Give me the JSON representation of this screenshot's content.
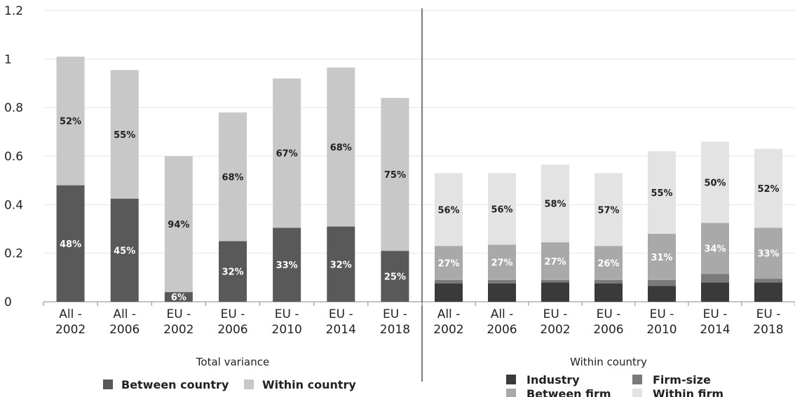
{
  "chart_data": {
    "type": "bar",
    "stacked": true,
    "ylim": [
      0,
      1.2
    ],
    "yticks": [
      "0",
      "0.2",
      "0.4",
      "0.6",
      "0.8",
      "1",
      "1.2"
    ],
    "grid": true,
    "colors": {
      "Between country": "#595959",
      "Within country": "#c8c8c8",
      "Industry": "#3a3a3a",
      "Firm-size": "#7a7a7a",
      "Between firm": "#a9a9a9",
      "Within firm": "#e3e3e3"
    },
    "panels": [
      {
        "label": "Total variance",
        "categories": [
          [
            "All -",
            "2002"
          ],
          [
            "All -",
            "2006"
          ],
          [
            "EU -",
            "2002"
          ],
          [
            "EU -",
            "2006"
          ],
          [
            "EU -",
            "2010"
          ],
          [
            "EU -",
            "2014"
          ],
          [
            "EU -",
            "2018"
          ]
        ],
        "series": [
          {
            "name": "Between country",
            "values": [
              0.48,
              0.425,
              0.04,
              0.25,
              0.305,
              0.31,
              0.21
            ],
            "labels": [
              "48%",
              "45%",
              "6%",
              "32%",
              "33%",
              "32%",
              "25%"
            ]
          },
          {
            "name": "Within country",
            "values": [
              0.53,
              0.53,
              0.56,
              0.53,
              0.615,
              0.655,
              0.63
            ],
            "labels": [
              "52%",
              "55%",
              "94%",
              "68%",
              "67%",
              "68%",
              "75%"
            ]
          }
        ],
        "legend": [
          "Between country",
          "Within country"
        ]
      },
      {
        "label": "Within country",
        "categories": [
          [
            "All -",
            "2002"
          ],
          [
            "All -",
            "2006"
          ],
          [
            "EU -",
            "2002"
          ],
          [
            "EU -",
            "2006"
          ],
          [
            "EU -",
            "2010"
          ],
          [
            "EU -",
            "2014"
          ],
          [
            "EU -",
            "2018"
          ]
        ],
        "series": [
          {
            "name": "Industry",
            "values": [
              0.075,
              0.075,
              0.08,
              0.075,
              0.065,
              0.08,
              0.08
            ],
            "labels": [
              "",
              "",
              "",
              "",
              "",
              "",
              ""
            ]
          },
          {
            "name": "Firm-size",
            "values": [
              0.015,
              0.015,
              0.01,
              0.015,
              0.025,
              0.035,
              0.015
            ],
            "labels": [
              "",
              "",
              "",
              "",
              "",
              "",
              ""
            ]
          },
          {
            "name": "Between firm",
            "values": [
              0.14,
              0.145,
              0.155,
              0.14,
              0.19,
              0.21,
              0.21
            ],
            "labels": [
              "27%",
              "27%",
              "27%",
              "26%",
              "31%",
              "34%",
              "33%"
            ]
          },
          {
            "name": "Within firm",
            "values": [
              0.3,
              0.295,
              0.32,
              0.3,
              0.34,
              0.335,
              0.325
            ],
            "labels": [
              "56%",
              "56%",
              "58%",
              "57%",
              "55%",
              "50%",
              "52%"
            ]
          }
        ],
        "legend": [
          "Industry",
          "Firm-size",
          "Between firm",
          "Within firm"
        ]
      }
    ]
  }
}
